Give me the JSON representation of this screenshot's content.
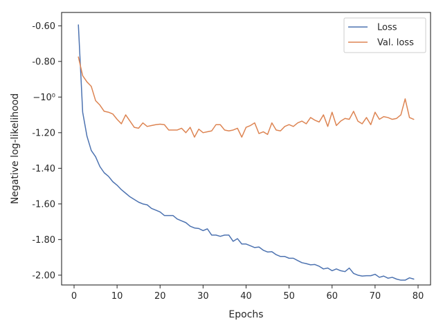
{
  "chart_data": {
    "type": "line",
    "title": "",
    "xlabel": "Epochs",
    "ylabel": "Negative log-likelihood",
    "xlim": [
      -2.9,
      82.9
    ],
    "ylim": [
      -2.055,
      -0.525
    ],
    "xticks": [
      0,
      10,
      20,
      30,
      40,
      50,
      60,
      70,
      80
    ],
    "xtick_labels": [
      "0",
      "10",
      "20",
      "30",
      "40",
      "50",
      "60",
      "70",
      "80"
    ],
    "yticks": [
      -2.0,
      -1.8,
      -1.6,
      -1.4,
      -1.2,
      -1.0,
      -0.8,
      -0.6
    ],
    "ytick_labels": [
      "-2.00",
      "-1.80",
      "-1.60",
      "-1.40",
      "-1.20",
      "−10⁰",
      "-0.80",
      "-0.60"
    ],
    "grid": false,
    "legend_position": "top-right",
    "x": [
      1,
      2,
      3,
      4,
      5,
      6,
      7,
      8,
      9,
      10,
      11,
      12,
      13,
      14,
      15,
      16,
      17,
      18,
      19,
      20,
      21,
      22,
      23,
      24,
      25,
      26,
      27,
      28,
      29,
      30,
      31,
      32,
      33,
      34,
      35,
      36,
      37,
      38,
      39,
      40,
      41,
      42,
      43,
      44,
      45,
      46,
      47,
      48,
      49,
      50,
      51,
      52,
      53,
      54,
      55,
      56,
      57,
      58,
      59,
      60,
      61,
      62,
      63,
      64,
      65,
      66,
      67,
      68,
      69,
      70,
      71,
      72,
      73,
      74,
      75,
      76,
      77,
      78,
      79
    ],
    "series": [
      {
        "name": "Loss",
        "color": "#4c72b0",
        "values": [
          -0.595,
          -1.085,
          -1.22,
          -1.3,
          -1.335,
          -1.39,
          -1.425,
          -1.445,
          -1.475,
          -1.495,
          -1.52,
          -1.54,
          -1.56,
          -1.575,
          -1.59,
          -1.6,
          -1.605,
          -1.625,
          -1.635,
          -1.645,
          -1.665,
          -1.665,
          -1.665,
          -1.685,
          -1.695,
          -1.705,
          -1.725,
          -1.735,
          -1.738,
          -1.75,
          -1.74,
          -1.775,
          -1.775,
          -1.782,
          -1.775,
          -1.775,
          -1.81,
          -1.795,
          -1.825,
          -1.825,
          -1.835,
          -1.845,
          -1.842,
          -1.86,
          -1.87,
          -1.868,
          -1.885,
          -1.895,
          -1.895,
          -1.905,
          -1.905,
          -1.918,
          -1.93,
          -1.935,
          -1.942,
          -1.94,
          -1.95,
          -1.965,
          -1.96,
          -1.975,
          -1.965,
          -1.975,
          -1.98,
          -1.96,
          -1.99,
          -2.0,
          -2.005,
          -2.003,
          -2.003,
          -1.995,
          -2.012,
          -2.005,
          -2.017,
          -2.012,
          -2.022,
          -2.028,
          -2.028,
          -2.015,
          -2.022
        ]
      },
      {
        "name": "Val. loss",
        "color": "#dd8452",
        "values": [
          -0.775,
          -0.88,
          -0.915,
          -0.94,
          -1.02,
          -1.045,
          -1.08,
          -1.085,
          -1.095,
          -1.125,
          -1.15,
          -1.1,
          -1.135,
          -1.17,
          -1.175,
          -1.145,
          -1.165,
          -1.16,
          -1.155,
          -1.152,
          -1.155,
          -1.185,
          -1.185,
          -1.185,
          -1.175,
          -1.2,
          -1.17,
          -1.225,
          -1.18,
          -1.2,
          -1.195,
          -1.19,
          -1.155,
          -1.155,
          -1.185,
          -1.19,
          -1.185,
          -1.175,
          -1.225,
          -1.17,
          -1.16,
          -1.145,
          -1.205,
          -1.195,
          -1.21,
          -1.145,
          -1.185,
          -1.19,
          -1.165,
          -1.155,
          -1.165,
          -1.145,
          -1.135,
          -1.15,
          -1.115,
          -1.13,
          -1.14,
          -1.1,
          -1.165,
          -1.085,
          -1.16,
          -1.135,
          -1.12,
          -1.125,
          -1.08,
          -1.135,
          -1.15,
          -1.115,
          -1.155,
          -1.085,
          -1.125,
          -1.11,
          -1.115,
          -1.125,
          -1.12,
          -1.1,
          -1.01,
          -1.115,
          -1.125
        ]
      }
    ]
  }
}
